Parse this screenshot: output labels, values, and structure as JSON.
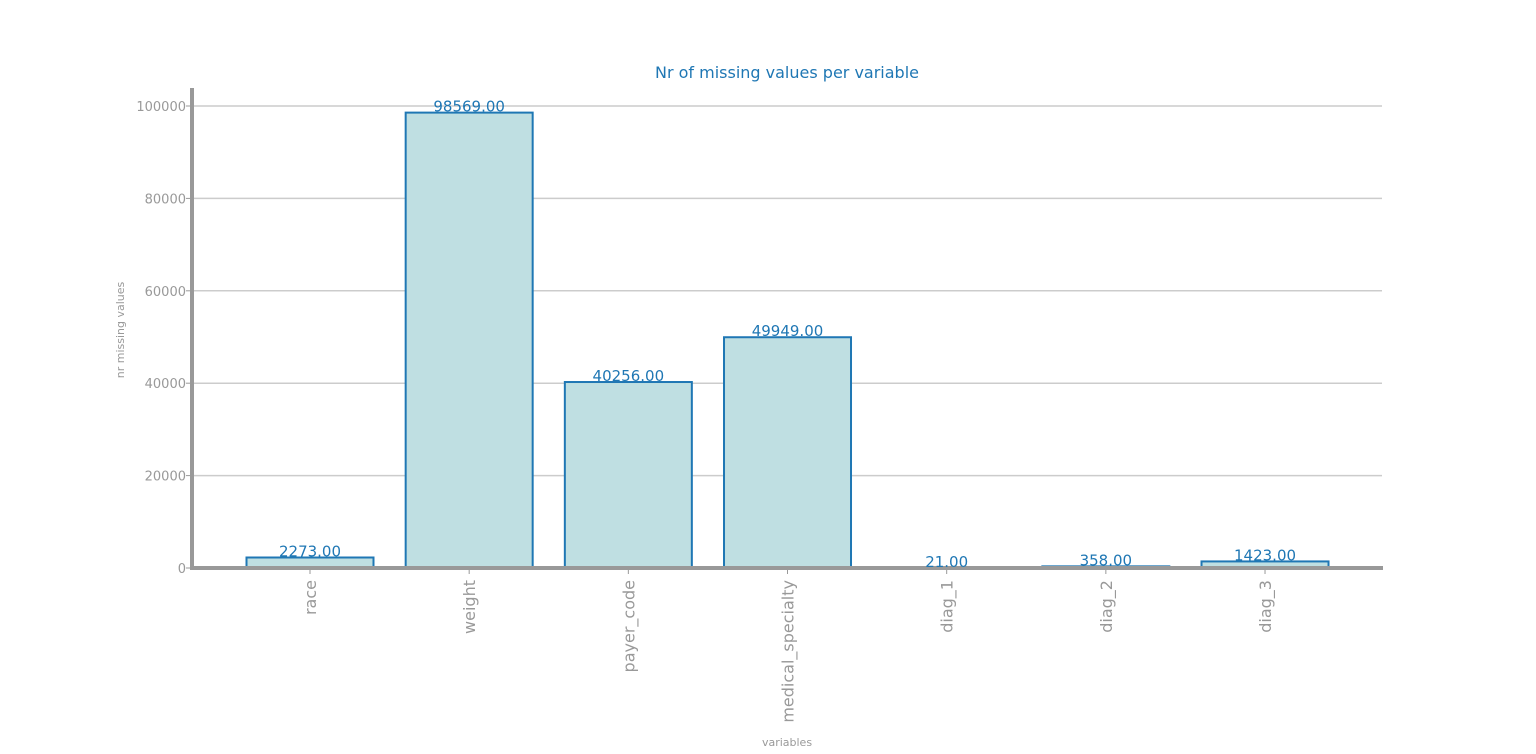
{
  "chart_data": {
    "type": "bar",
    "title": "Nr of missing values per variable",
    "xlabel": "variables",
    "ylabel": "nr missing values",
    "categories": [
      "race",
      "weight",
      "payer_code",
      "medical_specialty",
      "diag_1",
      "diag_2",
      "diag_3"
    ],
    "values": [
      2273,
      98569,
      40256,
      49949,
      21,
      358,
      1423
    ],
    "data_labels": [
      "2273.00",
      "98569.00",
      "40256.00",
      "49949.00",
      "21.00",
      "358.00",
      "1423.00"
    ],
    "yticks": [
      0,
      20000,
      40000,
      60000,
      80000,
      100000
    ],
    "ytick_labels": [
      "0",
      "20000",
      "40000",
      "60000",
      "80000",
      "100000"
    ],
    "ylim": [
      0,
      103500
    ],
    "grid": true,
    "colors": {
      "bar_fill": "#bfdfe2",
      "bar_edge": "#1f77b4",
      "text": "#1f77b4",
      "axis": "#999999",
      "grid": "#cccccc"
    }
  }
}
